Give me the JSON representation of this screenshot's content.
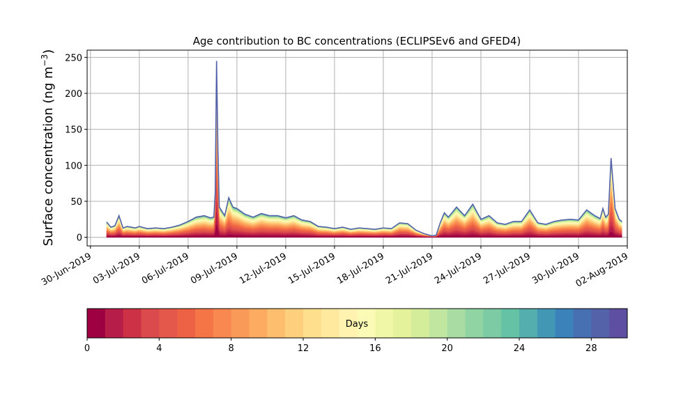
{
  "chart_data": {
    "type": "area",
    "title": "Age contribution to BC concentrations (ECLIPSEv6 and GFED4)",
    "ylabel": "Surface concentration (ng m",
    "ylabel_sup": "−3",
    "ylabel_close": ")",
    "xlabel": "",
    "ylim": [
      -12,
      260
    ],
    "y_ticks": [
      0,
      50,
      100,
      150,
      200,
      250
    ],
    "x_range": [
      "2019-06-29T19:00",
      "2019-08-02T00:00"
    ],
    "x_ticks": [
      {
        "date": "2019-06-30",
        "label": "30-Jun-2019"
      },
      {
        "date": "2019-07-03",
        "label": "03-Jul-2019"
      },
      {
        "date": "2019-07-06",
        "label": "06-Jul-2019"
      },
      {
        "date": "2019-07-09",
        "label": "09-Jul-2019"
      },
      {
        "date": "2019-07-12",
        "label": "12-Jul-2019"
      },
      {
        "date": "2019-07-15",
        "label": "15-Jul-2019"
      },
      {
        "date": "2019-07-18",
        "label": "18-Jul-2019"
      },
      {
        "date": "2019-07-21",
        "label": "21-Jul-2019"
      },
      {
        "date": "2019-07-24",
        "label": "24-Jul-2019"
      },
      {
        "date": "2019-07-27",
        "label": "27-Jul-2019"
      },
      {
        "date": "2019-07-30",
        "label": "30-Jul-2019"
      },
      {
        "date": "2019-08-02",
        "label": "02-Aug-2019"
      }
    ],
    "grid": true,
    "total_series": {
      "name": "",
      "x": [
        "2019-07-01T00:00",
        "2019-07-01T06:00",
        "2019-07-01T12:00",
        "2019-07-01T18:00",
        "2019-07-02T00:00",
        "2019-07-02T06:00",
        "2019-07-02T12:00",
        "2019-07-02T18:00",
        "2019-07-03T00:00",
        "2019-07-03T12:00",
        "2019-07-04T00:00",
        "2019-07-04T12:00",
        "2019-07-05T00:00",
        "2019-07-05T12:00",
        "2019-07-06T00:00",
        "2019-07-06T12:00",
        "2019-07-07T00:00",
        "2019-07-07T09:00",
        "2019-07-07T14:00",
        "2019-07-07T16:00",
        "2019-07-07T18:00",
        "2019-07-07T20:00",
        "2019-07-07T22:00",
        "2019-07-08T06:00",
        "2019-07-08T12:00",
        "2019-07-08T18:00",
        "2019-07-09T00:00",
        "2019-07-09T12:00",
        "2019-07-10T00:00",
        "2019-07-10T12:00",
        "2019-07-11T00:00",
        "2019-07-11T12:00",
        "2019-07-12T00:00",
        "2019-07-12T12:00",
        "2019-07-13T00:00",
        "2019-07-13T12:00",
        "2019-07-14T00:00",
        "2019-07-14T12:00",
        "2019-07-15T00:00",
        "2019-07-15T12:00",
        "2019-07-16T00:00",
        "2019-07-16T12:00",
        "2019-07-17T00:00",
        "2019-07-17T12:00",
        "2019-07-18T00:00",
        "2019-07-18T12:00",
        "2019-07-19T00:00",
        "2019-07-19T12:00",
        "2019-07-20T00:00",
        "2019-07-20T12:00",
        "2019-07-20T20:00",
        "2019-07-21T00:00",
        "2019-07-21T06:00",
        "2019-07-21T12:00",
        "2019-07-21T18:00",
        "2019-07-22T00:00",
        "2019-07-22T12:00",
        "2019-07-23T00:00",
        "2019-07-23T12:00",
        "2019-07-24T00:00",
        "2019-07-24T12:00",
        "2019-07-25T00:00",
        "2019-07-25T12:00",
        "2019-07-26T00:00",
        "2019-07-26T12:00",
        "2019-07-27T00:00",
        "2019-07-27T12:00",
        "2019-07-28T00:00",
        "2019-07-28T12:00",
        "2019-07-29T00:00",
        "2019-07-29T12:00",
        "2019-07-30T00:00",
        "2019-07-30T12:00",
        "2019-07-31T00:00",
        "2019-07-31T08:00",
        "2019-07-31T12:00",
        "2019-07-31T16:00",
        "2019-07-31T20:00",
        "2019-08-01T00:00",
        "2019-08-01T06:00",
        "2019-08-01T12:00",
        "2019-08-01T16:00"
      ],
      "values": [
        21,
        14,
        16,
        30,
        13,
        15,
        14,
        13,
        15,
        12,
        13,
        12,
        14,
        17,
        22,
        28,
        30,
        27,
        28,
        62,
        245,
        120,
        42,
        30,
        55,
        42,
        40,
        32,
        28,
        33,
        30,
        30,
        27,
        30,
        24,
        22,
        15,
        14,
        12,
        14,
        11,
        13,
        12,
        11,
        13,
        12,
        20,
        19,
        10,
        5,
        3,
        2,
        3,
        20,
        34,
        28,
        42,
        30,
        46,
        25,
        30,
        20,
        18,
        22,
        22,
        38,
        20,
        18,
        22,
        24,
        25,
        24,
        38,
        30,
        26,
        40,
        28,
        32,
        110,
        40,
        25,
        22
      ]
    },
    "colorbar": {
      "label": "Days",
      "min": 0,
      "max": 30,
      "n_bins": 30,
      "ticks": [
        0,
        4,
        8,
        12,
        16,
        20,
        24,
        28
      ],
      "colors": [
        "#9e0142",
        "#b61d48",
        "#cd3146",
        "#db4a4c",
        "#e4584b",
        "#ed6245",
        "#f57547",
        "#f8884f",
        "#fa9a58",
        "#fdab60",
        "#fdbe6e",
        "#fed07e",
        "#fedf8d",
        "#fee99e",
        "#fff3af",
        "#fbfbb6",
        "#f0f8a8",
        "#e3f29b",
        "#d4ed9b",
        "#c0e69f",
        "#a8dca2",
        "#91d4a4",
        "#7ccba5",
        "#66c2a5",
        "#54aead",
        "#4298b4",
        "#3a82b9",
        "#4770b3",
        "#5462a9",
        "#5e4fa2"
      ]
    }
  }
}
